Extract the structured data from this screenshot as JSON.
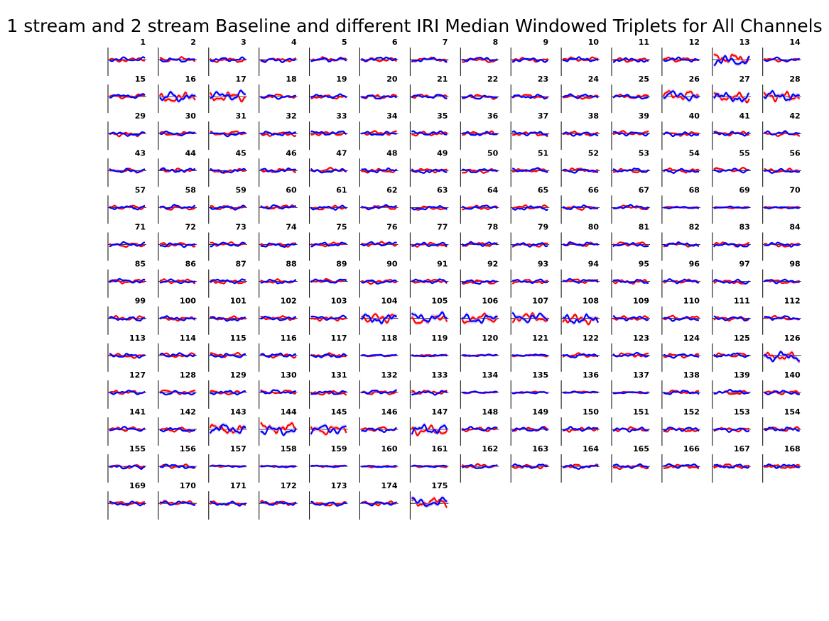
{
  "chart_data": {
    "type": "line",
    "title": "1 stream and 2 stream Baseline and different IRI Median Windowed Triplets for All Channels",
    "grid": false,
    "layout": "small multiples, 14 columns x 13 rows",
    "channel_start": 1,
    "channel_count": 175,
    "series": [
      {
        "color": "#ff0000"
      },
      {
        "color": "#0000ff"
      }
    ],
    "shading_colors": [
      "#ffaaaa",
      "#aaaaff"
    ],
    "baseline_color": "#000000"
  }
}
